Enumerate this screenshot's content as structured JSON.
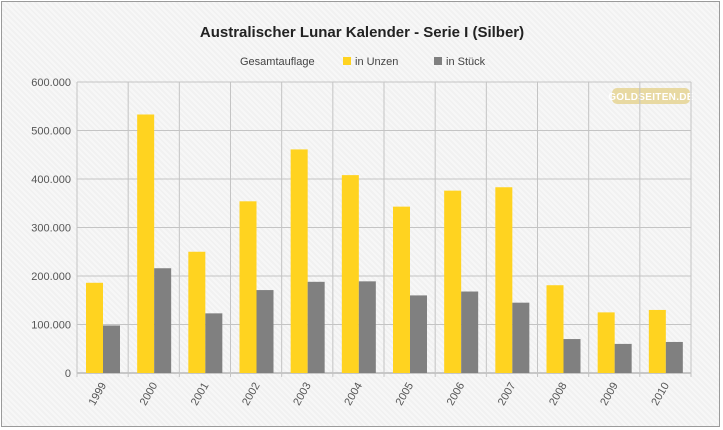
{
  "chart_data": {
    "type": "bar",
    "title": "Australischer Lunar Kalender - Serie I (Silber)",
    "legend_title": "Gesamtauflage",
    "legend_position": "top",
    "categories": [
      "1999",
      "2000",
      "2001",
      "2002",
      "2003",
      "2004",
      "2005",
      "2006",
      "2007",
      "2008",
      "2009",
      "2010"
    ],
    "series": [
      {
        "name": "in Unzen",
        "color": "#ffd320",
        "values": [
          186000,
          533000,
          250000,
          354000,
          461000,
          408000,
          343000,
          376000,
          383000,
          181000,
          125000,
          130000
        ]
      },
      {
        "name": "in Stück",
        "color": "#808080",
        "values": [
          98000,
          216000,
          123000,
          171000,
          188000,
          189000,
          160000,
          168000,
          145000,
          70000,
          60000,
          64000
        ]
      }
    ],
    "ylim": [
      0,
      600000
    ],
    "yticks": [
      0,
      100000,
      200000,
      300000,
      400000,
      500000,
      600000
    ],
    "ytick_labels": [
      "0",
      "100.000",
      "200.000",
      "300.000",
      "400.000",
      "500.000",
      "600.000"
    ],
    "grid": true,
    "watermark": "GOLDSEITEN.DE"
  }
}
